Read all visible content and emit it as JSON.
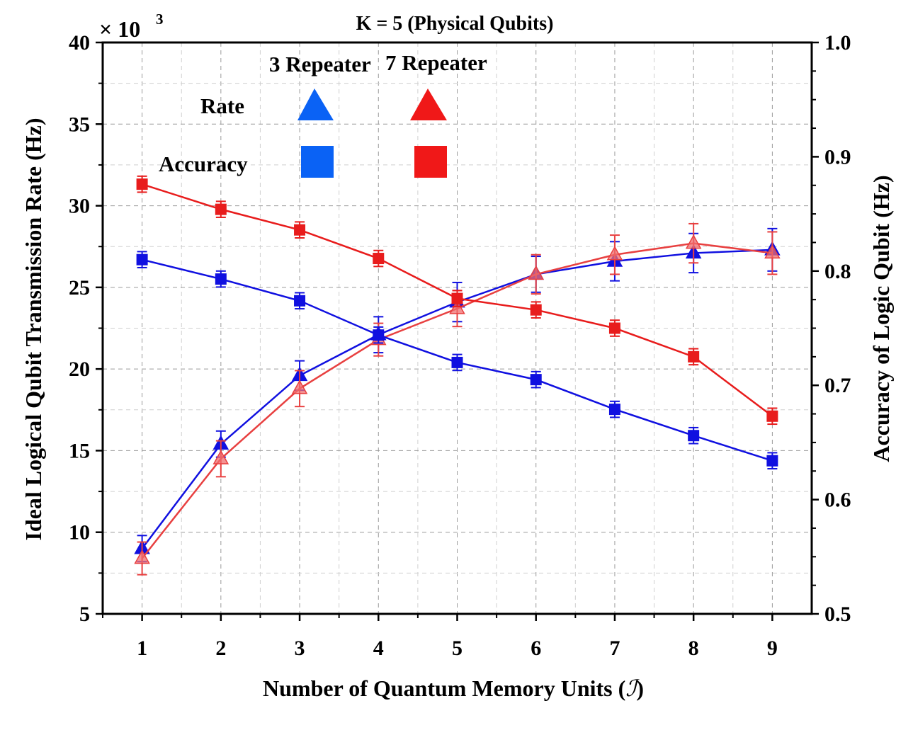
{
  "chart_data": {
    "type": "line",
    "title": "K = 5 (Physical Qubits)",
    "xlabel_main": "Number of Quantum Memory Units (",
    "xlabel_symbol": "ℐ",
    "xlabel_close": ")",
    "ylabel_left": "Ideal Logical Qubit Transmission Rate (Hz)",
    "ylabel_right": "Accuracy of Logic Qubit (Hz)",
    "left_multiplier": "× 10",
    "left_multiplier_exp": "3",
    "x": [
      1,
      2,
      3,
      4,
      5,
      6,
      7,
      8,
      9
    ],
    "xlim": [
      0.5,
      9.5
    ],
    "ylim_left": [
      5,
      40
    ],
    "ylim_right": [
      0.5,
      1.0
    ],
    "xticks": [
      "1",
      "2",
      "3",
      "4",
      "5",
      "6",
      "7",
      "8",
      "9"
    ],
    "yticks_left": [
      "5",
      "10",
      "15",
      "20",
      "25",
      "30",
      "35",
      "40"
    ],
    "yticks_right": [
      "0.5",
      "0.6",
      "0.7",
      "0.8",
      "0.9",
      "1.0"
    ],
    "grid": true,
    "legend": {
      "col_headers": [
        "3 Repeater",
        "7 Repeater"
      ],
      "row_labels": [
        "Rate",
        "Accuracy"
      ]
    },
    "series": [
      {
        "name": "3 Repeater Rate",
        "axis": "left",
        "marker": "triangle",
        "color": "#1010e0",
        "values": [
          9.0,
          15.4,
          19.6,
          22.1,
          24.1,
          25.8,
          26.6,
          27.1,
          27.3
        ],
        "errors": [
          0.8,
          0.8,
          0.9,
          1.1,
          1.2,
          1.1,
          1.2,
          1.2,
          1.3
        ]
      },
      {
        "name": "7 Repeater Rate",
        "axis": "left",
        "marker": "triangle",
        "color": "#e84040",
        "values": [
          8.4,
          14.5,
          18.8,
          21.8,
          23.7,
          25.8,
          27.0,
          27.7,
          27.1
        ],
        "errors": [
          1.0,
          1.1,
          1.1,
          1.0,
          1.1,
          1.2,
          1.2,
          1.2,
          1.3
        ]
      },
      {
        "name": "3 Repeater Accuracy",
        "axis": "right",
        "marker": "square",
        "color": "#1010e0",
        "values": [
          0.81,
          0.793,
          0.774,
          0.744,
          0.72,
          0.705,
          0.679,
          0.656,
          0.634
        ],
        "errors": [
          0.007,
          0.007,
          0.007,
          0.007,
          0.007,
          0.007,
          0.007,
          0.007,
          0.007
        ]
      },
      {
        "name": "7 Repeater Accuracy",
        "axis": "right",
        "marker": "square",
        "color": "#e81c1c",
        "values": [
          0.876,
          0.854,
          0.836,
          0.811,
          0.776,
          0.766,
          0.75,
          0.725,
          0.673
        ],
        "errors": [
          0.007,
          0.007,
          0.007,
          0.007,
          0.007,
          0.007,
          0.007,
          0.007,
          0.007
        ]
      }
    ],
    "legend_colors": {
      "blue": "#0a62f5",
      "red": "#f01818"
    }
  }
}
